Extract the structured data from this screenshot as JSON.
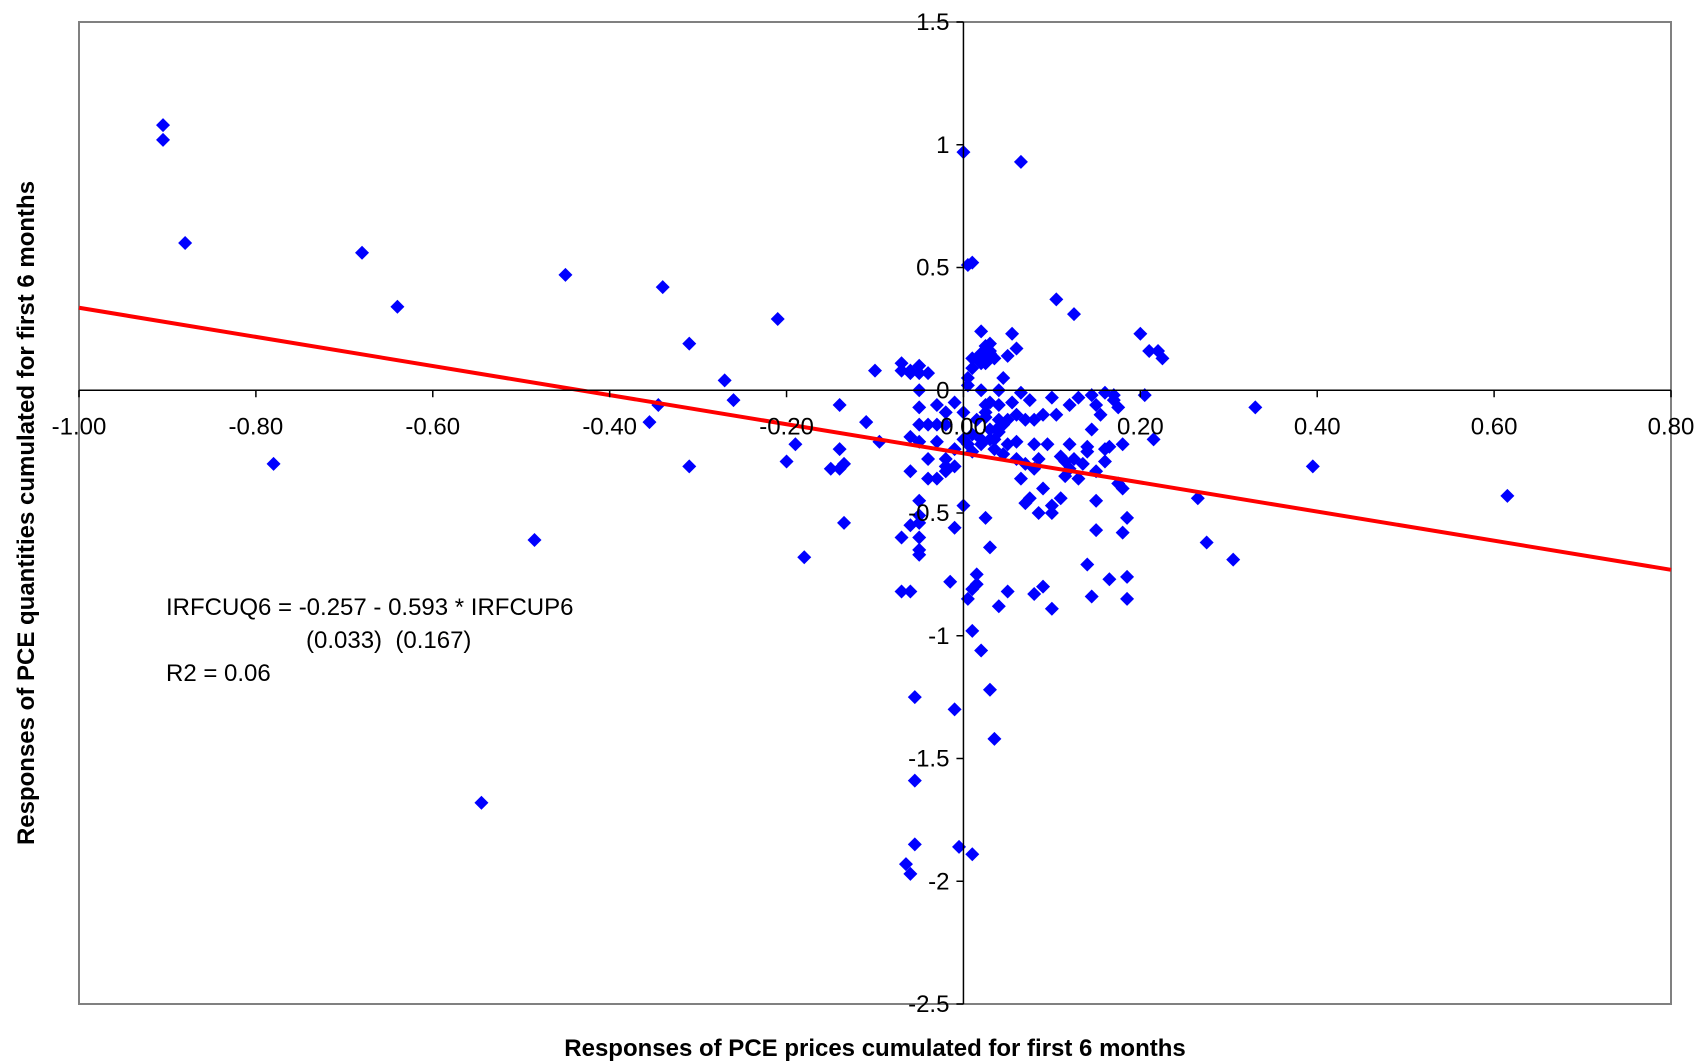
{
  "chart_data": {
    "type": "scatter",
    "title": "",
    "xlabel": "Responses of PCE prices cumulated for first 6 months",
    "ylabel": "Responses of PCE quantities cumulated for first 6 months",
    "xlim": [
      -1.0,
      0.8
    ],
    "ylim": [
      -2.5,
      1.5
    ],
    "x_ticks": [
      "-1.00",
      "-0.80",
      "-0.60",
      "-0.40",
      "-0.20",
      "0.00",
      "0.20",
      "0.40",
      "0.60",
      "0.80"
    ],
    "x_tick_values": [
      -1.0,
      -0.8,
      -0.6,
      -0.4,
      -0.2,
      0.0,
      0.2,
      0.4,
      0.6,
      0.8
    ],
    "y_ticks": [
      "1.5",
      "1",
      "0.5",
      "0",
      "-0.5",
      "-1",
      "-1.5",
      "-2",
      "-2.5"
    ],
    "y_tick_values": [
      1.5,
      1.0,
      0.5,
      0.0,
      -0.5,
      -1.0,
      -1.5,
      -2.0,
      -2.5
    ],
    "grid": false,
    "legend": "none",
    "colors": {
      "points": "#0000FF",
      "fit_line": "#FF0000",
      "axes": "#000000",
      "frame": "#808080"
    },
    "series": [
      {
        "marker": "diamond",
        "x": [
          -0.905,
          -0.905,
          -0.88,
          -0.68,
          -0.64,
          -0.78,
          -0.45,
          -0.34,
          -0.31,
          -0.27,
          -0.26,
          -0.21,
          -0.345,
          -0.355,
          -0.31,
          -0.485,
          -0.545,
          -0.19,
          -0.2,
          -0.18,
          -0.14,
          -0.14,
          -0.15,
          -0.14,
          -0.135,
          -0.135,
          -0.11,
          -0.11,
          -0.1,
          -0.095,
          -0.07,
          -0.07,
          -0.06,
          -0.05,
          -0.06,
          -0.05,
          -0.04,
          -0.04,
          -0.05,
          -0.06,
          -0.06,
          -0.05,
          -0.05,
          -0.05,
          -0.03,
          -0.03,
          -0.03,
          -0.04,
          -0.02,
          -0.02,
          -0.02,
          -0.01,
          -0.07,
          -0.06,
          -0.05,
          -0.05,
          -0.05,
          -0.06,
          -0.07,
          -0.05,
          -0.05,
          -0.05,
          -0.04,
          -0.01,
          -0.01,
          -0.02,
          -0.03,
          -0.02,
          0.0,
          0.0,
          0.005,
          0.01,
          0.01,
          0.015,
          0.02,
          0.02,
          0.025,
          0.025,
          0.03,
          0.03,
          0.035,
          0.04,
          0.04,
          0.04,
          0.045,
          0.005,
          0.01,
          0.02,
          0.025,
          0.03,
          0.03,
          0.02,
          0.025,
          0.03,
          0.035,
          0.04,
          0.045,
          0.05,
          0.05,
          0.055,
          0.06,
          0.06,
          0.065,
          0.07,
          0.07,
          0.075,
          0.08,
          0.08,
          0.085,
          0.085,
          0.09,
          0.095,
          0.1,
          0.1,
          0.105,
          0.11,
          0.115,
          0.12,
          0.12,
          0.125,
          0.13,
          0.135,
          0.14,
          0.145,
          0.15,
          0.15,
          0.155,
          0.16,
          0.165,
          0.17,
          0.175,
          0.18,
          0.06,
          0.065,
          0.07,
          0.075,
          0.08,
          0.09,
          0.1,
          0.11,
          0.115,
          0.12,
          0.13,
          0.14,
          0.145,
          0.16,
          0.175,
          0.18,
          0.185,
          0.005,
          0.01,
          0.015,
          0.02,
          0.02,
          0.025,
          0.025,
          0.03,
          0.035,
          0.04,
          0.045,
          0.05,
          0.055,
          0.06,
          0.005,
          0.01,
          0.015,
          0.025,
          0.03,
          0.09,
          0.08,
          0.1,
          0.2,
          0.205,
          0.215,
          0.22,
          0.225,
          0.21,
          0.265,
          0.275,
          0.305,
          0.33,
          0.395,
          0.615,
          0.15,
          0.16,
          0.17,
          0.18,
          0.185,
          0.14,
          0.15,
          0.0,
          0.005,
          0.01,
          0.0,
          -0.01,
          -0.01,
          -0.055,
          -0.055,
          -0.055,
          -0.06,
          -0.065,
          -0.005,
          0.01,
          0.01,
          0.02,
          0.03,
          0.035,
          0.04,
          0.05,
          0.065,
          0.105,
          0.125,
          0.145,
          0.165,
          0.185,
          -0.015,
          0.015
        ],
        "y": [
          1.08,
          1.02,
          0.6,
          0.56,
          0.34,
          -0.3,
          0.47,
          0.42,
          0.19,
          0.04,
          -0.04,
          0.29,
          -0.06,
          -0.13,
          -0.31,
          -0.61,
          -1.68,
          -0.22,
          -0.29,
          -0.68,
          -0.24,
          -0.32,
          -0.32,
          -0.06,
          -0.54,
          -0.3,
          -0.13,
          -0.13,
          0.08,
          -0.21,
          0.11,
          0.08,
          0.08,
          0.1,
          0.07,
          0.0,
          0.07,
          -0.14,
          -0.21,
          -0.33,
          -0.19,
          -0.14,
          0.07,
          -0.07,
          -0.14,
          -0.06,
          -0.21,
          -0.28,
          -0.09,
          -0.14,
          -0.28,
          -0.05,
          -0.6,
          -0.55,
          -0.6,
          -0.65,
          -0.51,
          -0.82,
          -0.82,
          -0.67,
          -0.45,
          -0.54,
          -0.36,
          -0.24,
          -0.31,
          -0.33,
          -0.36,
          -0.31,
          -0.09,
          -0.2,
          -0.22,
          -0.18,
          -0.25,
          -0.12,
          -0.22,
          -0.2,
          -0.11,
          -0.09,
          -0.05,
          -0.2,
          -0.24,
          -0.15,
          -0.06,
          -0.12,
          -0.26,
          0.05,
          0.13,
          0.11,
          0.12,
          0.15,
          0.19,
          0.0,
          -0.06,
          -0.16,
          -0.2,
          -0.17,
          -0.14,
          -0.12,
          -0.22,
          -0.05,
          -0.1,
          -0.21,
          -0.01,
          -0.12,
          -0.3,
          -0.04,
          -0.22,
          -0.12,
          -0.28,
          -0.5,
          -0.1,
          -0.22,
          -0.5,
          -0.03,
          -0.1,
          -0.27,
          -0.35,
          -0.22,
          -0.06,
          -0.28,
          -0.03,
          -0.3,
          -0.23,
          -0.02,
          -0.06,
          -0.33,
          -0.1,
          -0.01,
          -0.23,
          -0.02,
          -0.07,
          -0.4,
          -0.28,
          -0.36,
          -0.46,
          -0.44,
          -0.32,
          -0.4,
          -0.47,
          -0.44,
          -0.29,
          -0.32,
          -0.36,
          -0.25,
          -0.16,
          -0.24,
          -0.38,
          -0.58,
          -0.52,
          0.02,
          0.09,
          0.13,
          0.15,
          0.24,
          0.11,
          0.18,
          0.16,
          0.13,
          0.0,
          0.05,
          0.14,
          0.23,
          0.17,
          -0.85,
          -0.81,
          -0.79,
          -0.52,
          -0.64,
          -0.8,
          -0.83,
          -0.89,
          0.23,
          -0.02,
          -0.2,
          0.16,
          0.13,
          0.16,
          -0.44,
          -0.62,
          -0.69,
          -0.07,
          -0.31,
          -0.43,
          -0.57,
          -0.29,
          -0.04,
          -0.22,
          -0.76,
          -0.71,
          -0.45,
          0.97,
          0.51,
          0.52,
          -0.47,
          -0.56,
          -1.3,
          -1.25,
          -1.59,
          -1.85,
          -1.97,
          -1.93,
          -1.86,
          -1.89,
          -0.98,
          -1.06,
          -1.22,
          -1.42,
          -0.88,
          -0.82,
          0.93,
          0.37,
          0.31,
          -0.84,
          -0.77,
          -0.85,
          -0.78,
          -0.75
        ]
      }
    ],
    "fit_line": {
      "intercept": -0.257,
      "slope": -0.593,
      "x_range": [
        -1.0,
        0.8
      ]
    },
    "annotations": [
      "IRFCUQ6 = -0.257 - 0.593 * IRFCUP6",
      "(0.033)  (0.167)",
      "R2 = 0.06"
    ]
  }
}
